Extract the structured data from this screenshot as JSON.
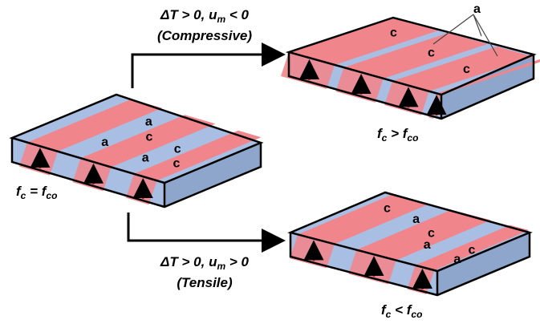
{
  "conditions": {
    "compressive": {
      "prefix": "ΔT > 0,  u",
      "sub": "m",
      "suffix": " < 0",
      "note": "(Compressive)"
    },
    "tensile": {
      "prefix": "ΔT > 0, u",
      "sub": "m",
      "suffix": " > 0",
      "note": "(Tensile)"
    }
  },
  "blocks": [
    {
      "relation": {
        "f": "f",
        "sub1": "c",
        "op": " = f",
        "sub2": "co"
      },
      "domain_labels": [
        "a",
        "c",
        "a",
        "c",
        "a",
        "c"
      ]
    },
    {
      "relation": {
        "f": "f",
        "sub1": "c",
        "op": " > f",
        "sub2": "co"
      },
      "domain_labels": [
        "c",
        "c",
        "c",
        "a"
      ]
    },
    {
      "relation": {
        "f": "f",
        "sub1": "c",
        "op": " < f",
        "sub2": "co"
      },
      "domain_labels": [
        "c",
        "a",
        "c",
        "a",
        "c",
        "a"
      ]
    }
  ]
}
